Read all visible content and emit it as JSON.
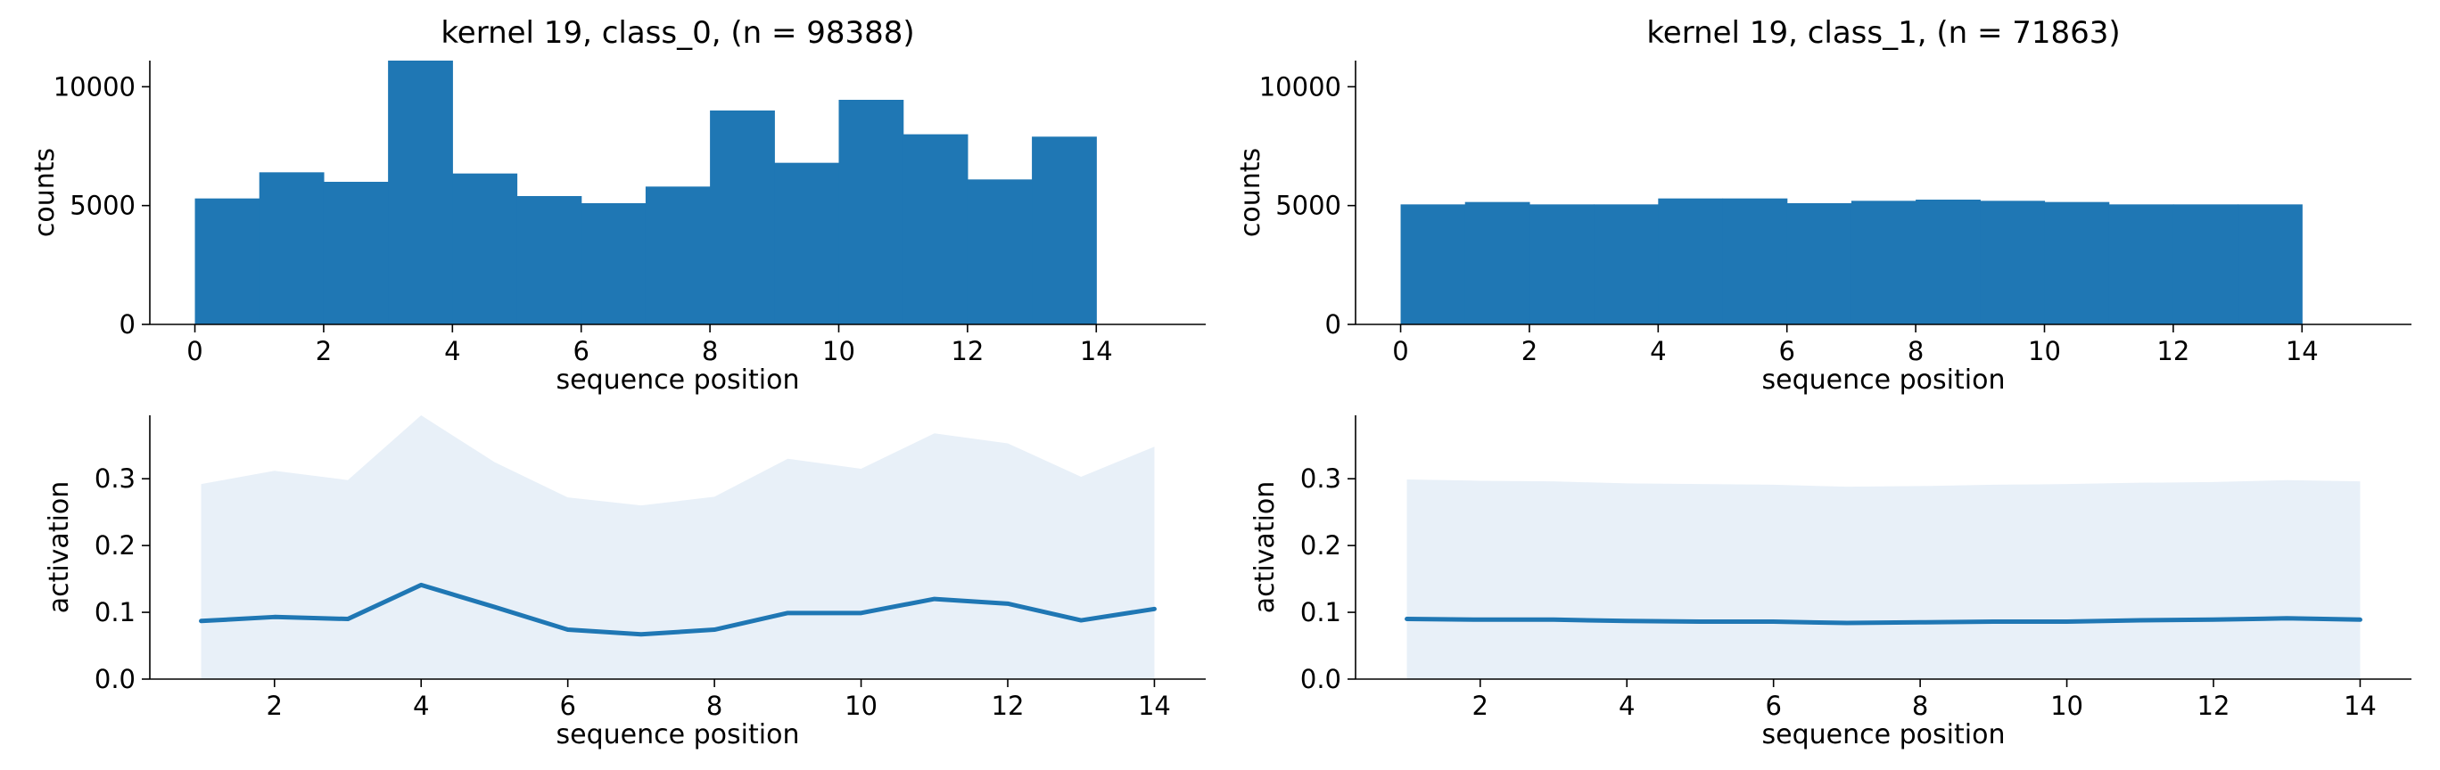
{
  "chart_data": [
    {
      "type": "bar",
      "title": "kernel 19, class_0, (n = 98388)",
      "xlabel": "sequence position",
      "ylabel": "counts",
      "xlim": [
        -0.7,
        15.7
      ],
      "ylim": [
        0,
        11100
      ],
      "xticks": [
        0,
        2,
        4,
        6,
        8,
        10,
        12,
        14
      ],
      "yticks": [
        0,
        5000,
        10000
      ],
      "bin_edges": [
        0,
        1,
        2,
        3,
        4,
        5,
        6,
        7,
        8,
        9,
        10,
        11,
        12,
        13,
        14
      ],
      "values": [
        5300,
        6400,
        6000,
        11100,
        6350,
        5400,
        5100,
        5800,
        9000,
        6800,
        9450,
        8000,
        6100,
        7900
      ],
      "color": "#1f77b4",
      "grid": false
    },
    {
      "type": "bar",
      "title": "kernel 19, class_1, (n = 71863)",
      "xlabel": "sequence position",
      "ylabel": "counts",
      "xlim": [
        -0.7,
        15.7
      ],
      "ylim": [
        0,
        11100
      ],
      "xticks": [
        0,
        2,
        4,
        6,
        8,
        10,
        12,
        14
      ],
      "yticks": [
        0,
        5000,
        10000
      ],
      "bin_edges": [
        0,
        1,
        2,
        3,
        4,
        5,
        6,
        7,
        8,
        9,
        10,
        11,
        12,
        13,
        14
      ],
      "values": [
        5050,
        5150,
        5050,
        5050,
        5300,
        5300,
        5100,
        5200,
        5250,
        5200,
        5150,
        5050,
        5050,
        5050
      ],
      "color": "#1f77b4",
      "grid": false
    },
    {
      "type": "line",
      "title": "",
      "xlabel": "sequence position",
      "ylabel": "activation",
      "xlim": [
        0.3,
        14.7
      ],
      "ylim": [
        0,
        0.395
      ],
      "xticks": [
        2,
        4,
        6,
        8,
        10,
        12,
        14
      ],
      "yticks": [
        0.0,
        0.1,
        0.2,
        0.3
      ],
      "ytick_labels": [
        "0.0",
        "0.1",
        "0.2",
        "0.3"
      ],
      "x": [
        1,
        2,
        3,
        4,
        5,
        6,
        7,
        8,
        9,
        10,
        11,
        12,
        13,
        14
      ],
      "series": [
        {
          "values": [
            0.087,
            0.093,
            0.09,
            0.141,
            0.108,
            0.074,
            0.067,
            0.074,
            0.099,
            0.099,
            0.12,
            0.113,
            0.088,
            0.105
          ]
        }
      ],
      "band_upper": [
        0.292,
        0.312,
        0.298,
        0.395,
        0.325,
        0.272,
        0.26,
        0.273,
        0.33,
        0.315,
        0.368,
        0.353,
        0.303,
        0.348
      ],
      "band_lower": [
        0,
        0,
        0,
        0,
        0,
        0,
        0,
        0,
        0,
        0,
        0,
        0,
        0,
        0
      ],
      "color": "#1f77b4",
      "band_color": "#e8f0f8",
      "grid": false
    },
    {
      "type": "line",
      "title": "",
      "xlabel": "sequence position",
      "ylabel": "activation",
      "xlim": [
        0.3,
        14.7
      ],
      "ylim": [
        0,
        0.395
      ],
      "xticks": [
        2,
        4,
        6,
        8,
        10,
        12,
        14
      ],
      "yticks": [
        0.0,
        0.1,
        0.2,
        0.3
      ],
      "ytick_labels": [
        "0.0",
        "0.1",
        "0.2",
        "0.3"
      ],
      "x": [
        1,
        2,
        3,
        4,
        5,
        6,
        7,
        8,
        9,
        10,
        11,
        12,
        13,
        14
      ],
      "series": [
        {
          "values": [
            0.09,
            0.089,
            0.089,
            0.087,
            0.086,
            0.086,
            0.084,
            0.085,
            0.086,
            0.086,
            0.088,
            0.089,
            0.091,
            0.089
          ]
        }
      ],
      "band_upper": [
        0.299,
        0.297,
        0.296,
        0.293,
        0.292,
        0.291,
        0.288,
        0.289,
        0.291,
        0.292,
        0.294,
        0.295,
        0.298,
        0.296
      ],
      "band_lower": [
        0,
        0,
        0,
        0,
        0,
        0,
        0,
        0,
        0,
        0,
        0,
        0,
        0,
        0
      ],
      "color": "#1f77b4",
      "band_color": "#e8f0f8",
      "grid": false
    }
  ]
}
